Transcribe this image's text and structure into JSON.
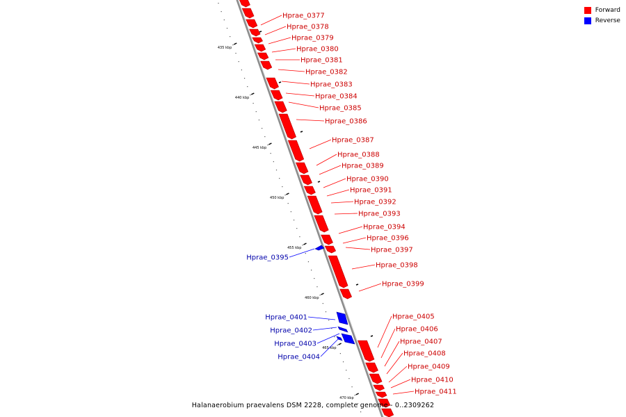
{
  "caption": "Halanaerobium praevalens DSM 2228, complete genome - 0..2309262",
  "legend": [
    {
      "label": "Forward",
      "color": "#ff0000"
    },
    {
      "label": "Reverse",
      "color": "#0000ff"
    }
  ],
  "colors": {
    "forward": "#ff0000",
    "reverse": "#0000ff",
    "backbone": "#8c8c8c"
  },
  "ticks": [
    "435 kbp",
    "440 kbp",
    "445 kbp",
    "450 kbp",
    "455 kbp",
    "460 kbp",
    "465 kbp",
    "470 kbp"
  ],
  "genes": {
    "forward": [
      "Hprae_0377",
      "Hprae_0378",
      "Hprae_0379",
      "Hprae_0380",
      "Hprae_0381",
      "Hprae_0382",
      "Hprae_0383",
      "Hprae_0384",
      "Hprae_0385",
      "Hprae_0386",
      "Hprae_0387",
      "Hprae_0388",
      "Hprae_0389",
      "Hprae_0390",
      "Hprae_0391",
      "Hprae_0392",
      "Hprae_0393",
      "Hprae_0394",
      "Hprae_0396",
      "Hprae_0397",
      "Hprae_0398",
      "Hprae_0399",
      "Hprae_0405",
      "Hprae_0406",
      "Hprae_0407",
      "Hprae_0408",
      "Hprae_0409",
      "Hprae_0410",
      "Hprae_0411"
    ],
    "reverse": [
      "Hprae_0395",
      "Hprae_0401",
      "Hprae_0402",
      "Hprae_0403",
      "Hprae_0404"
    ]
  }
}
